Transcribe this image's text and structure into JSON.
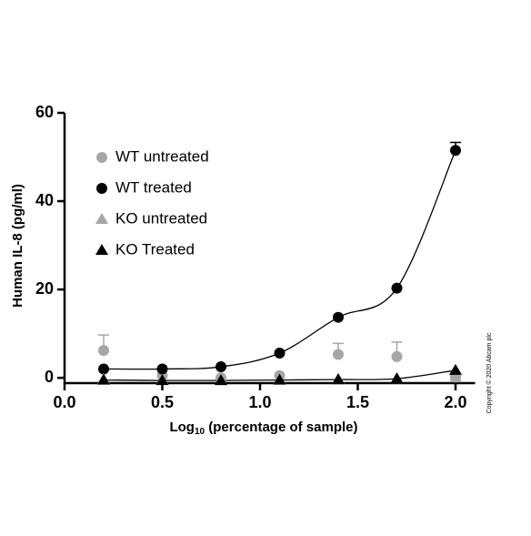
{
  "chart_data": {
    "type": "scatter",
    "y_label": "Human IL-8 (pg/ml)",
    "x_label": {
      "main": "Log",
      "sub": "10",
      "rest": " (percentage of sample)"
    },
    "copyright": "Copyright © 2020 Abcam plc",
    "x": [
      0.2,
      0.5,
      0.8,
      1.1,
      1.4,
      1.7,
      2.0
    ],
    "series": [
      {
        "name": "WT untreated",
        "color": "#a6a6a6",
        "marker": "circle",
        "line": false,
        "values": [
          6.2,
          0.5,
          0,
          0.5,
          5.3,
          4.8,
          0.2
        ],
        "errors": [
          3.5,
          null,
          null,
          null,
          2.5,
          3.3,
          null
        ]
      },
      {
        "name": "WT treated",
        "color": "#000000",
        "marker": "circle",
        "line": true,
        "values": [
          2,
          2,
          2.5,
          5.6,
          13.7,
          20.3,
          51.5
        ],
        "errors": [
          null,
          null,
          null,
          null,
          null,
          null,
          1.8
        ]
      },
      {
        "name": "KO untreated",
        "color": "#a6a6a6",
        "marker": "triangle",
        "line": false,
        "values": [
          -0.3,
          -0.5,
          -0.6,
          -0.4,
          -0.3,
          -0.2,
          0
        ],
        "errors": [
          null,
          null,
          null,
          null,
          null,
          null,
          null
        ]
      },
      {
        "name": "KO Treated",
        "color": "#000000",
        "marker": "triangle",
        "line": true,
        "values": [
          -0.5,
          -0.6,
          -0.6,
          -0.5,
          -0.4,
          -0.2,
          1.7
        ],
        "errors": [
          null,
          null,
          null,
          null,
          null,
          null,
          null
        ]
      }
    ],
    "xlim": [
      0,
      2.1
    ],
    "ylim": [
      -1.2,
      60
    ],
    "xticks": [
      {
        "value": 0,
        "label": "0.0"
      },
      0.5,
      {
        "value": 1,
        "label": "1.0"
      },
      1.5,
      {
        "value": 2,
        "label": "2.0"
      }
    ],
    "yticks": [
      0,
      20,
      40,
      60
    ],
    "legend": "upper-left"
  }
}
